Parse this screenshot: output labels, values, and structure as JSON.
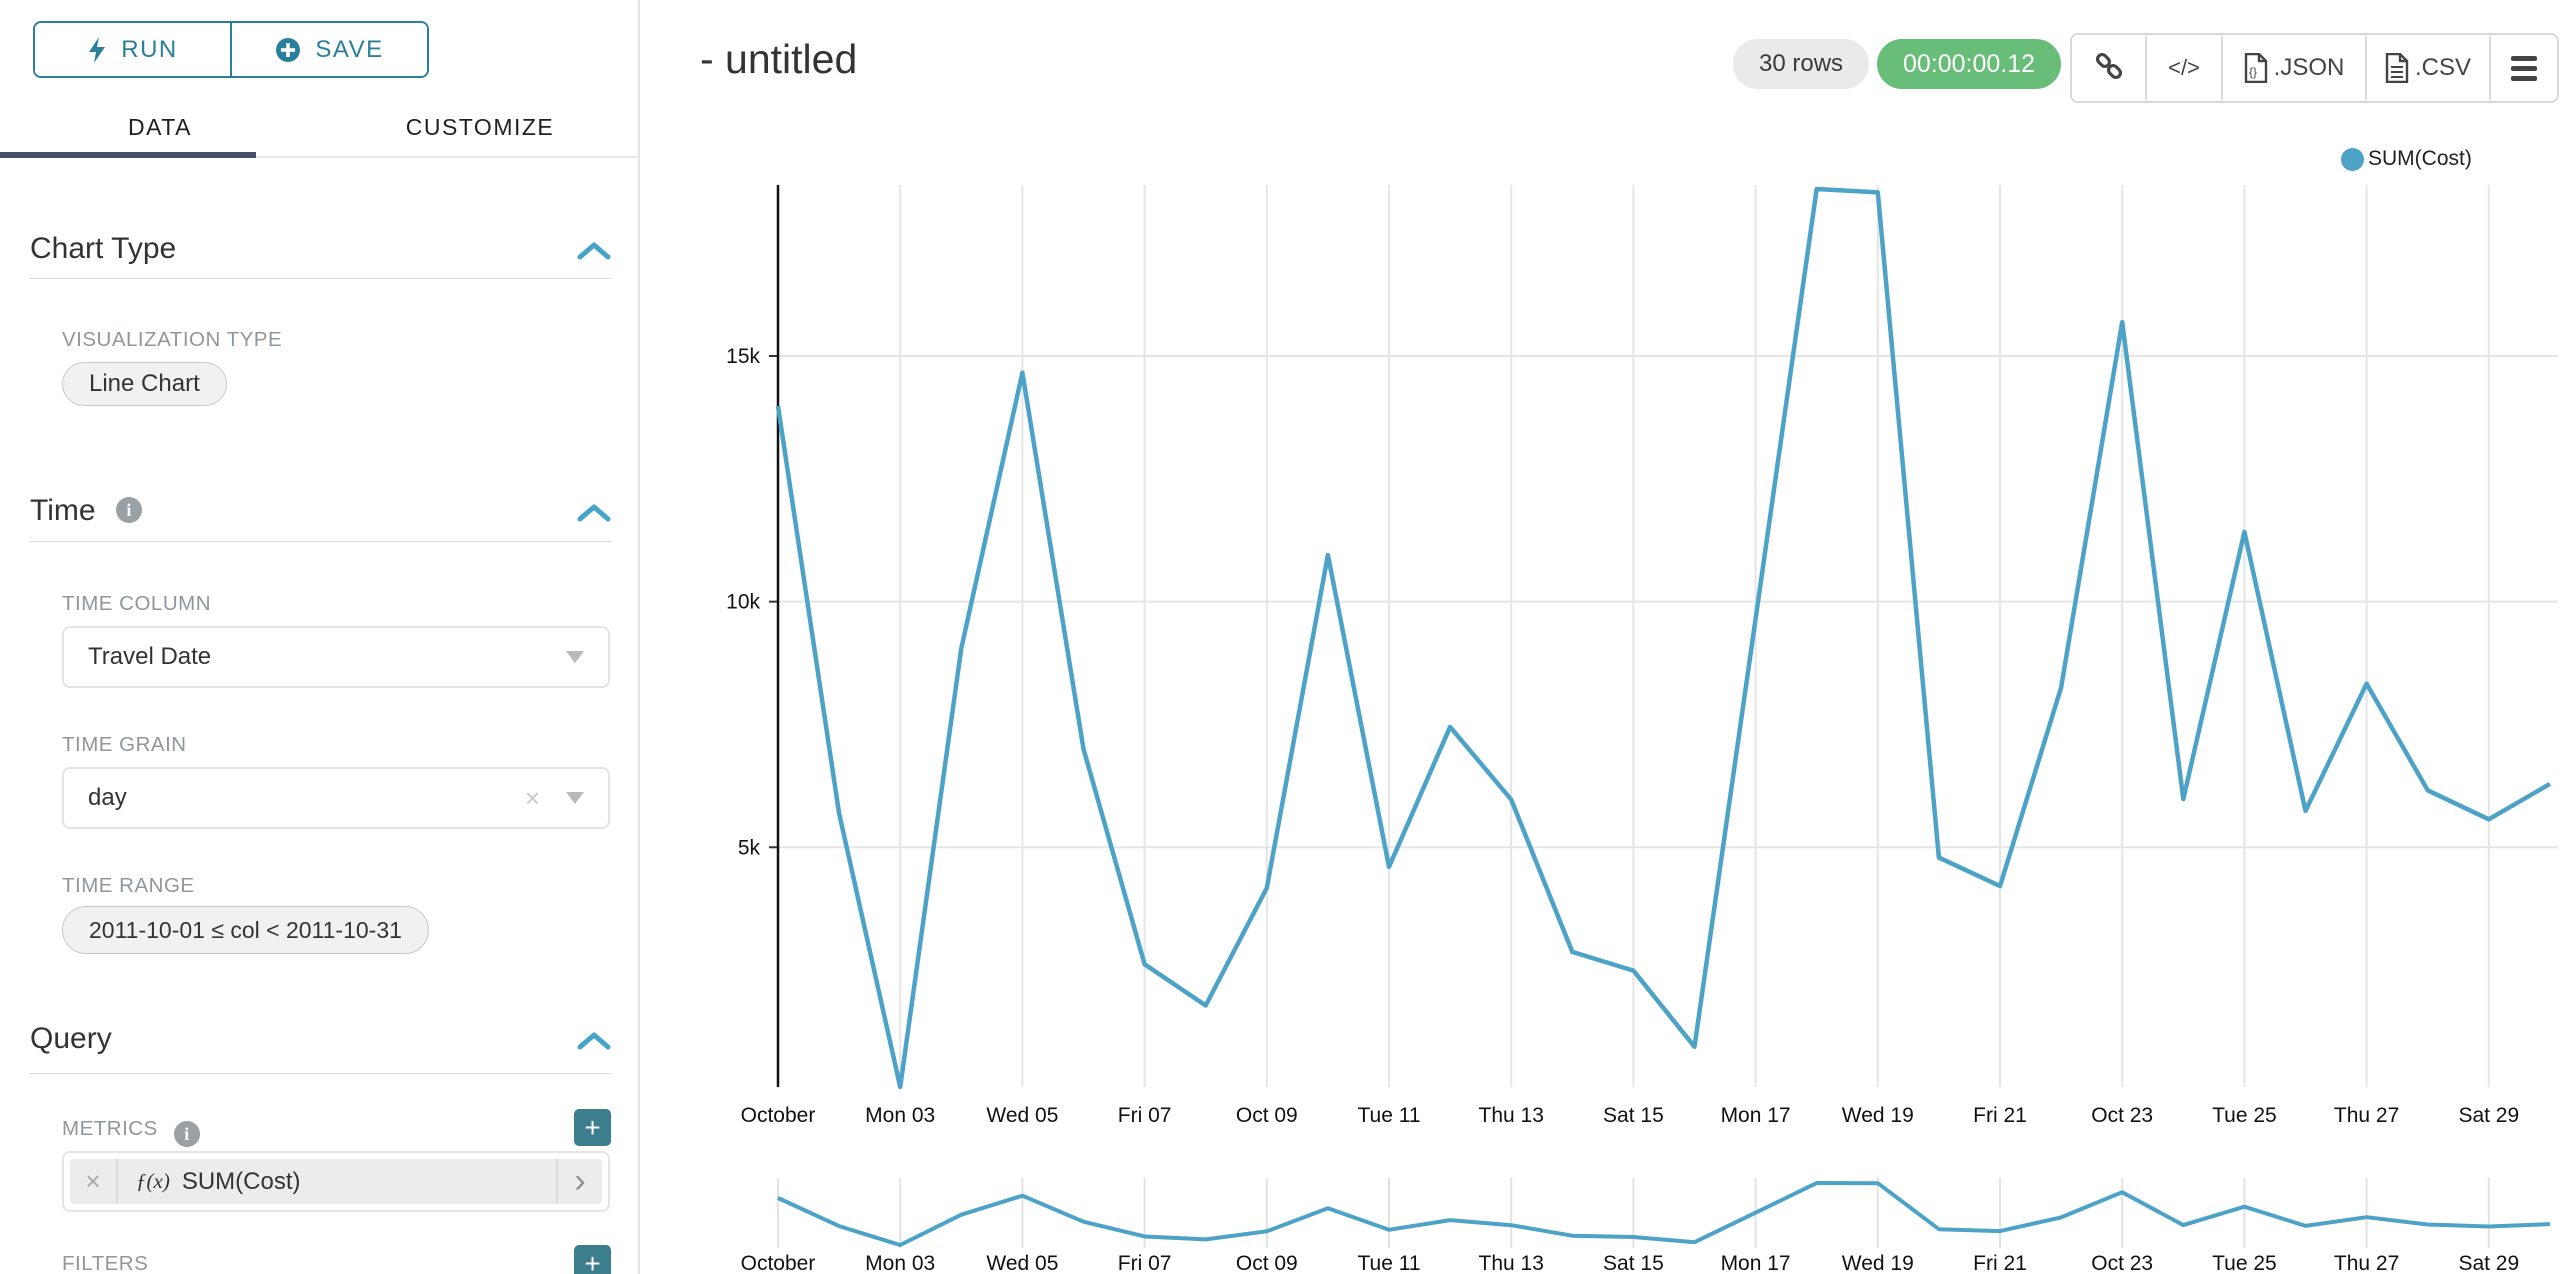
{
  "sidebar": {
    "run_label": "RUN",
    "save_label": "SAVE",
    "tabs": [
      {
        "label": "DATA",
        "active": true
      },
      {
        "label": "CUSTOMIZE",
        "active": false
      }
    ],
    "chart_type": {
      "title": "Chart Type",
      "viz_label": "VISUALIZATION TYPE",
      "viz_value": "Line Chart"
    },
    "time": {
      "title": "Time",
      "time_column_label": "TIME COLUMN",
      "time_column_value": "Travel Date",
      "time_grain_label": "TIME GRAIN",
      "time_grain_value": "day",
      "time_range_label": "TIME RANGE",
      "time_range_value": "2011-10-01 ≤ col < 2011-10-31"
    },
    "query": {
      "title": "Query",
      "metrics_label": "METRICS",
      "metric_fx": "ƒ(x)",
      "metric_value": "SUM(Cost)",
      "filters_label": "FILTERS"
    }
  },
  "header": {
    "title": "- untitled",
    "rows_badge": "30 rows",
    "timer_badge": "00:00:00.12",
    "export_json_label": ".JSON",
    "export_csv_label": ".CSV"
  },
  "legend": {
    "label": "SUM(Cost)",
    "color": "#4da2c7"
  },
  "colors": {
    "line": "#4da2c7",
    "accent_teal": "#2a7f9b",
    "tab_underline": "#44506b",
    "timer_green": "#68bd79",
    "grid": "#e5e5e5"
  },
  "chart_data": {
    "type": "line",
    "series": [
      {
        "name": "SUM(Cost)",
        "values": [
          13980,
          5690,
          120,
          9050,
          14660,
          7000,
          2620,
          1780,
          4170,
          10950,
          4600,
          7450,
          5970,
          2870,
          2490,
          940,
          9650,
          18400,
          18330,
          4790,
          4210,
          8250,
          15690,
          5980,
          11420,
          5740,
          8330,
          6160,
          5570,
          6290
        ]
      }
    ],
    "x": [
      "2011-10-01",
      "2011-10-02",
      "2011-10-03",
      "2011-10-04",
      "2011-10-05",
      "2011-10-06",
      "2011-10-07",
      "2011-10-08",
      "2011-10-09",
      "2011-10-10",
      "2011-10-11",
      "2011-10-12",
      "2011-10-13",
      "2011-10-14",
      "2011-10-15",
      "2011-10-16",
      "2011-10-17",
      "2011-10-18",
      "2011-10-19",
      "2011-10-20",
      "2011-10-21",
      "2011-10-22",
      "2011-10-23",
      "2011-10-24",
      "2011-10-25",
      "2011-10-26",
      "2011-10-27",
      "2011-10-28",
      "2011-10-29",
      "2011-10-30"
    ],
    "x_tick_labels": [
      "October",
      "Mon 03",
      "Wed 05",
      "Fri 07",
      "Oct 09",
      "Tue 11",
      "Thu 13",
      "Sat 15",
      "Mon 17",
      "Wed 19",
      "Fri 21",
      "Oct 23",
      "Tue 25",
      "Thu 27",
      "Sat 29"
    ],
    "y_ticks": [
      5000,
      10000,
      15000
    ],
    "y_tick_labels": [
      "5k",
      "10k",
      "15k"
    ],
    "ylim": [
      120,
      18400
    ],
    "grid": true,
    "legend_position": "top-right",
    "has_context_brush": true
  }
}
